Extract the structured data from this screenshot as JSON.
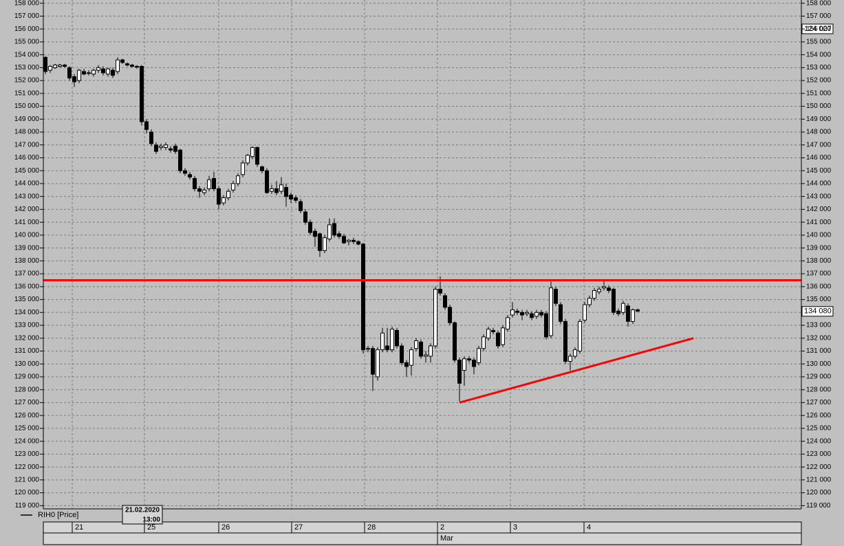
{
  "chart_data": {
    "type": "candlestick",
    "legend": "RIH0 [Price]",
    "cursor_label": [
      "21.02.2020",
      "13:00"
    ],
    "scale_marker": "124 027",
    "last_price": {
      "value": 134080,
      "label": "134 080"
    },
    "month_label": "Mar",
    "candles": [
      [
        153800,
        153900,
        152500,
        152700
      ],
      [
        152800,
        153200,
        152600,
        153100
      ],
      [
        153000,
        153300,
        152900,
        153200
      ],
      [
        153100,
        153300,
        153000,
        153200
      ],
      [
        153200,
        153300,
        153000,
        153100
      ],
      [
        153000,
        153100,
        152000,
        152200
      ],
      [
        152300,
        152500,
        151500,
        151900
      ],
      [
        152000,
        152900,
        151800,
        152800
      ],
      [
        152700,
        152900,
        152400,
        152500
      ],
      [
        152600,
        152800,
        152400,
        152600
      ],
      [
        152500,
        152900,
        152300,
        152800
      ],
      [
        152800,
        153200,
        152600,
        153000
      ],
      [
        152900,
        153100,
        152400,
        152600
      ],
      [
        152500,
        153000,
        152300,
        152900
      ],
      [
        152800,
        153000,
        152200,
        152400
      ],
      [
        152700,
        153800,
        152500,
        153600
      ],
      [
        153600,
        153700,
        153300,
        153400
      ],
      [
        153300,
        153400,
        153100,
        153200
      ],
      [
        153200,
        153300,
        153000,
        153100
      ],
      [
        153100,
        153200,
        152900,
        153100
      ],
      [
        153100,
        153200,
        148500,
        148800
      ],
      [
        148800,
        149000,
        147900,
        148200
      ],
      [
        148000,
        148200,
        146900,
        147100
      ],
      [
        147000,
        147200,
        146300,
        146500
      ],
      [
        146800,
        147100,
        146600,
        146900
      ],
      [
        146800,
        147200,
        146600,
        147000
      ],
      [
        146700,
        146900,
        146400,
        146600
      ],
      [
        146900,
        147100,
        146300,
        146500
      ],
      [
        146600,
        146700,
        144800,
        145000
      ],
      [
        145000,
        145200,
        144600,
        144800
      ],
      [
        144700,
        144900,
        144300,
        144500
      ],
      [
        144400,
        144600,
        143400,
        143600
      ],
      [
        143600,
        143800,
        142900,
        143400
      ],
      [
        143300,
        143700,
        143100,
        143500
      ],
      [
        143600,
        144600,
        143400,
        144300
      ],
      [
        144400,
        144900,
        143400,
        143600
      ],
      [
        143600,
        143800,
        142000,
        142400
      ],
      [
        142500,
        143100,
        142300,
        142900
      ],
      [
        142900,
        143600,
        142700,
        143400
      ],
      [
        143500,
        144200,
        143300,
        144000
      ],
      [
        144000,
        144800,
        143800,
        144600
      ],
      [
        144700,
        145800,
        144500,
        145600
      ],
      [
        145600,
        146300,
        145400,
        146200
      ],
      [
        146100,
        146900,
        145900,
        146800
      ],
      [
        146800,
        146900,
        145300,
        145500
      ],
      [
        145300,
        145400,
        144800,
        145000
      ],
      [
        145000,
        145200,
        143200,
        143300
      ],
      [
        143400,
        143900,
        143200,
        143600
      ],
      [
        143600,
        144200,
        143100,
        143300
      ],
      [
        143400,
        144500,
        143200,
        143900
      ],
      [
        143700,
        144000,
        142200,
        143000
      ],
      [
        143100,
        143300,
        142500,
        142800
      ],
      [
        142900,
        143100,
        142500,
        142700
      ],
      [
        142600,
        142800,
        141700,
        141900
      ],
      [
        141800,
        142000,
        140800,
        141000
      ],
      [
        141000,
        141200,
        140000,
        140200
      ],
      [
        140300,
        140500,
        139100,
        139900
      ],
      [
        140100,
        140200,
        138300,
        138800
      ],
      [
        138800,
        140000,
        138600,
        139800
      ],
      [
        139700,
        141300,
        139500,
        140800
      ],
      [
        140900,
        141300,
        139800,
        140000
      ],
      [
        140100,
        140300,
        139700,
        139900
      ],
      [
        139900,
        140100,
        139300,
        139400
      ],
      [
        139500,
        139700,
        139200,
        139600
      ],
      [
        139600,
        139800,
        139300,
        139500
      ],
      [
        139500,
        139600,
        139200,
        139300
      ],
      [
        139300,
        139400,
        130800,
        131100
      ],
      [
        131200,
        131400,
        130900,
        131200
      ],
      [
        131200,
        131400,
        127900,
        129200
      ],
      [
        129000,
        131300,
        128700,
        131100
      ],
      [
        131100,
        132800,
        130900,
        132400
      ],
      [
        131400,
        132800,
        130900,
        131100
      ],
      [
        131100,
        132900,
        130900,
        132700
      ],
      [
        132600,
        132800,
        131200,
        131400
      ],
      [
        131400,
        131600,
        129900,
        130100
      ],
      [
        130100,
        130300,
        129000,
        129800
      ],
      [
        129900,
        131300,
        129100,
        131100
      ],
      [
        131200,
        132000,
        131000,
        131800
      ],
      [
        131700,
        131900,
        130400,
        130600
      ],
      [
        130600,
        131000,
        130100,
        130700
      ],
      [
        130600,
        131600,
        130100,
        131400
      ],
      [
        131400,
        136000,
        131200,
        135800
      ],
      [
        135800,
        136800,
        135300,
        135500
      ],
      [
        135300,
        135500,
        134200,
        134400
      ],
      [
        134400,
        134600,
        133000,
        133200
      ],
      [
        133200,
        133300,
        130100,
        130300
      ],
      [
        130300,
        130500,
        127100,
        128500
      ],
      [
        129500,
        130600,
        128300,
        130400
      ],
      [
        130400,
        130600,
        130100,
        130300
      ],
      [
        130300,
        130500,
        129200,
        129800
      ],
      [
        130100,
        131400,
        129900,
        131200
      ],
      [
        131200,
        132300,
        131000,
        132100
      ],
      [
        132000,
        132900,
        131800,
        132700
      ],
      [
        132600,
        132800,
        132300,
        132500
      ],
      [
        132400,
        132600,
        131200,
        131400
      ],
      [
        131500,
        133000,
        131300,
        132800
      ],
      [
        132700,
        133800,
        132500,
        133600
      ],
      [
        133800,
        134800,
        133600,
        134200
      ],
      [
        134100,
        134300,
        133800,
        134000
      ],
      [
        134000,
        134200,
        133400,
        133800
      ],
      [
        133900,
        134200,
        133700,
        134000
      ],
      [
        133900,
        134100,
        133400,
        133600
      ],
      [
        133700,
        134200,
        133500,
        134000
      ],
      [
        134000,
        134200,
        133600,
        133800
      ],
      [
        133900,
        134100,
        131900,
        132100
      ],
      [
        132200,
        136400,
        132000,
        135900
      ],
      [
        135800,
        136000,
        134500,
        134700
      ],
      [
        134600,
        134800,
        133100,
        133300
      ],
      [
        133300,
        133500,
        130000,
        130200
      ],
      [
        130200,
        130800,
        129500,
        130600
      ],
      [
        130600,
        131300,
        130400,
        131100
      ],
      [
        131000,
        133500,
        130800,
        133300
      ],
      [
        133400,
        134800,
        133200,
        134600
      ],
      [
        134600,
        135300,
        134400,
        135100
      ],
      [
        135100,
        135900,
        134900,
        135700
      ],
      [
        135600,
        136000,
        135400,
        135800
      ],
      [
        135900,
        136500,
        135700,
        136000
      ],
      [
        135900,
        136100,
        135500,
        135700
      ],
      [
        135800,
        135900,
        133800,
        134000
      ],
      [
        134100,
        134300,
        133700,
        133900
      ],
      [
        134000,
        134900,
        133800,
        134700
      ],
      [
        134500,
        134700,
        132900,
        133300
      ],
      [
        133300,
        134300,
        133100,
        134200
      ],
      [
        134200,
        134300,
        134000,
        134100
      ]
    ],
    "up_color": "#ffffff",
    "down_color": "#000000",
    "lines": [
      {
        "color": "#ff0000",
        "x": [
          -0.43,
          157
        ],
        "values": [
          136500,
          136500
        ]
      },
      {
        "color": "#ff0000",
        "x": [
          86,
          134.6
        ],
        "values": [
          127000,
          132000
        ]
      }
    ],
    "xlim": [
      -0.43,
      157
    ],
    "xticks": [
      {
        "value": 5.57,
        "label": "21"
      },
      {
        "value": 20.57,
        "label": "25"
      },
      {
        "value": 36,
        "label": "26"
      },
      {
        "value": 51.14,
        "label": "27"
      },
      {
        "value": 66.29,
        "label": "28"
      },
      {
        "value": 81.43,
        "label": "2"
      },
      {
        "value": 96.57,
        "label": "3"
      },
      {
        "value": 111.86,
        "label": "4"
      }
    ],
    "ylim": [
      118750,
      158250
    ],
    "yticks": [
      {
        "value": 158000,
        "label": "158 000"
      },
      {
        "value": 157000,
        "label": "157 000"
      },
      {
        "value": 156000,
        "label": "156 000"
      },
      {
        "value": 155000,
        "label": "155 000"
      },
      {
        "value": 154000,
        "label": "154 000"
      },
      {
        "value": 153000,
        "label": "153 000"
      },
      {
        "value": 152000,
        "label": "152 000"
      },
      {
        "value": 151000,
        "label": "151 000"
      },
      {
        "value": 150000,
        "label": "150 000"
      },
      {
        "value": 149000,
        "label": "149 000"
      },
      {
        "value": 148000,
        "label": "148 000"
      },
      {
        "value": 147000,
        "label": "147 000"
      },
      {
        "value": 146000,
        "label": "146 000"
      },
      {
        "value": 145000,
        "label": "145 000"
      },
      {
        "value": 144000,
        "label": "144 000"
      },
      {
        "value": 143000,
        "label": "143 000"
      },
      {
        "value": 142000,
        "label": "142 000"
      },
      {
        "value": 141000,
        "label": "141 000"
      },
      {
        "value": 140000,
        "label": "140 000"
      },
      {
        "value": 139000,
        "label": "139 000"
      },
      {
        "value": 138000,
        "label": "138 000"
      },
      {
        "value": 137000,
        "label": "137 000"
      },
      {
        "value": 136000,
        "label": "136 000"
      },
      {
        "value": 135000,
        "label": "135 000"
      },
      {
        "value": 134000,
        "label": "134 000"
      },
      {
        "value": 133000,
        "label": "133 000"
      },
      {
        "value": 132000,
        "label": "132 000"
      },
      {
        "value": 131000,
        "label": "131 000"
      },
      {
        "value": 130000,
        "label": "130 000"
      },
      {
        "value": 129000,
        "label": "129 000"
      },
      {
        "value": 128000,
        "label": "128 000"
      },
      {
        "value": 127000,
        "label": "127 000"
      },
      {
        "value": 126000,
        "label": "126 000"
      },
      {
        "value": 125000,
        "label": "125 000"
      },
      {
        "value": 124000,
        "label": "124 000"
      },
      {
        "value": 123000,
        "label": "123 000"
      },
      {
        "value": 122000,
        "label": "122 000"
      },
      {
        "value": 121000,
        "label": "121 000"
      },
      {
        "value": 120000,
        "label": "120 000"
      },
      {
        "value": 119000,
        "label": "119 000"
      }
    ],
    "grid": true
  }
}
